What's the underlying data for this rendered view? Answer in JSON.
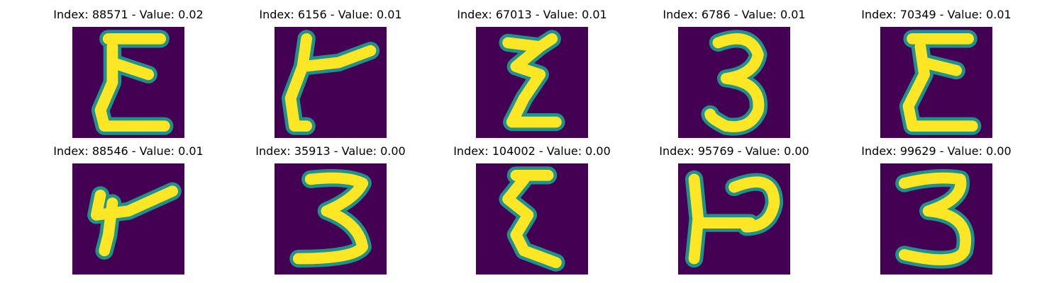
{
  "colors": {
    "background": "#440154",
    "stroke_mid": "#21918c",
    "stroke_core": "#fde725",
    "stroke_edge": "#5ec962"
  },
  "panels": [
    {
      "title": "Index: 88571 - Value: 0.02",
      "glyph": "epsilon"
    },
    {
      "title": "Index: 6156 - Value: 0.01",
      "glyph": "hook"
    },
    {
      "title": "Index: 67013 - Value: 0.01",
      "glyph": "zigzag"
    },
    {
      "title": "Index: 6786 - Value: 0.01",
      "glyph": "three"
    },
    {
      "title": "Index: 70349 - Value: 0.01",
      "glyph": "epsilon"
    },
    {
      "title": "Index: 88546 - Value: 0.01",
      "glyph": "hook"
    },
    {
      "title": "Index: 35913 - Value: 0.00",
      "glyph": "three"
    },
    {
      "title": "Index: 104002 - Value: 0.00",
      "glyph": "epsilon"
    },
    {
      "title": "Index: 95769 - Value: 0.00",
      "glyph": "hook-loop"
    },
    {
      "title": "Index: 99629 - Value: 0.00",
      "glyph": "three"
    }
  ]
}
